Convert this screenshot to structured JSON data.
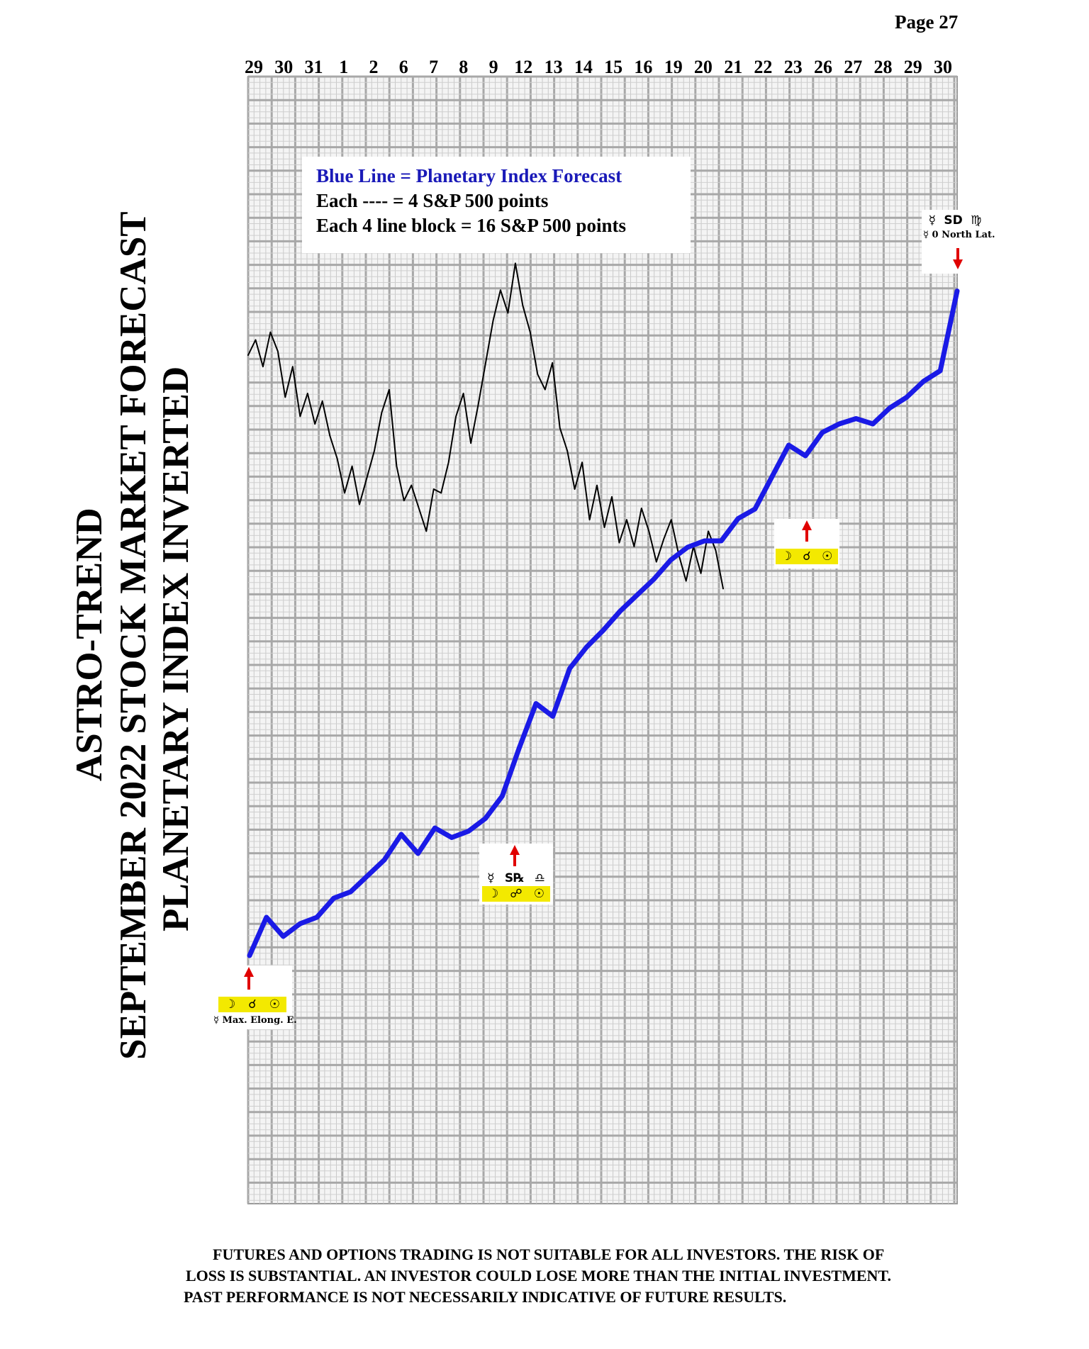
{
  "page_label": "Page  27",
  "titles": {
    "line1": "ASTRO-TREND",
    "line2": "SEPTEMBER 2022  STOCK MARKET FORECAST",
    "line3": "PLANETARY INDEX INVERTED"
  },
  "legend": {
    "title": "Blue Line = Planetary Index Forecast",
    "each": "Each ---- =   4 S&P 500 points",
    "block": "Each 4 line block =  16  S&P 500 points"
  },
  "chart_data": {
    "type": "line",
    "x_tick_labels": [
      "29",
      "30",
      "31",
      "1",
      "2",
      "6",
      "7",
      "8",
      "9",
      "12",
      "13",
      "14",
      "15",
      "16",
      "19",
      "20",
      "21",
      "22",
      "23",
      "26",
      "27",
      "28",
      "29",
      "30"
    ],
    "grid": true,
    "series": [
      {
        "color": "#1a1ae6",
        "values": [
          0,
          7.2,
          3.6,
          6,
          7.2,
          10.8,
          12,
          15,
          18,
          22.8,
          19.2,
          24,
          22.2,
          23.4,
          25.8,
          30,
          39,
          47.4,
          45,
          54,
          58,
          61.2,
          64.8,
          67.8,
          70.8,
          74.4,
          76.8,
          78,
          78,
          82.2,
          84,
          90,
          96,
          94,
          98.4,
          100,
          101,
          100,
          103,
          105,
          108,
          110,
          125
        ]
      },
      {
        "color": "#000000",
        "values": [
          85,
          89,
          82,
          91,
          86,
          74,
          82,
          69,
          75,
          67,
          73,
          64,
          58,
          49,
          56,
          46,
          53,
          60,
          70,
          76,
          56,
          47,
          51,
          45,
          39,
          50,
          49,
          57,
          69,
          75,
          62,
          72,
          83,
          94,
          102,
          96,
          109,
          98,
          91,
          80,
          76,
          83,
          66,
          60,
          50,
          57,
          42,
          51,
          40,
          48,
          36,
          42,
          35,
          45,
          39,
          31,
          37,
          42,
          33,
          26,
          35,
          28,
          39,
          34,
          24
        ]
      }
    ]
  },
  "annotations": {
    "note1": {
      "symbols": [
        "☽",
        "☌",
        "☉"
      ],
      "text": "☿ Max. Elong. E."
    },
    "note2": {
      "top_symbols": [
        "☿",
        "S℞",
        "♎"
      ],
      "symbols": [
        "☽",
        "☍",
        "☉"
      ]
    },
    "note3": {
      "symbols": [
        "☽",
        "☌",
        "☉"
      ]
    },
    "note4": {
      "top_symbols": [
        "☿",
        "SD",
        "♍"
      ],
      "text": "☿ 0 North Lat."
    }
  },
  "disclaimer": {
    "line1": "FUTURES AND OPTIONS TRADING IS NOT SUITABLE FOR ALL INVESTORS.  THE RISK OF",
    "line2": "LOSS IS SUBSTANTIAL.  AN INVESTOR COULD LOSE MORE THAN THE INITIAL INVESTMENT.",
    "line3": "PAST PERFORMANCE IS NOT NECESSARILY INDICATIVE OF FUTURE RESULTS."
  }
}
